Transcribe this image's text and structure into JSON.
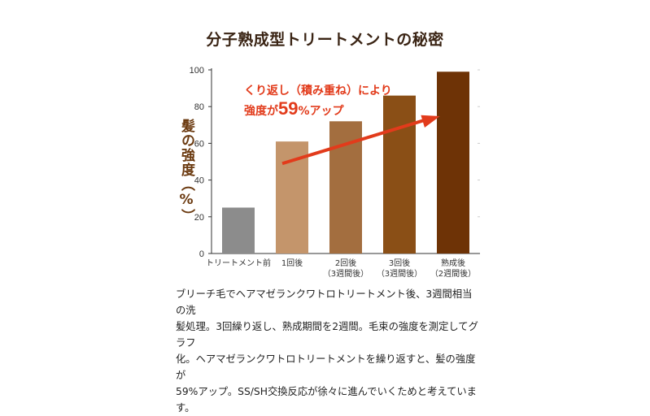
{
  "chart_data": {
    "type": "bar",
    "title": "分子熟成型トリートメントの秘密",
    "ylabel": "髪の強度（%）",
    "ylim": [
      0,
      100
    ],
    "yticks": [
      0,
      20,
      40,
      60,
      80,
      100
    ],
    "grid": false,
    "categories": [
      [
        "トリートメント前"
      ],
      [
        "1回後"
      ],
      [
        "2回後",
        "（3週間後）"
      ],
      [
        "3回後",
        "（3週間後）"
      ],
      [
        "熟成後",
        "（2週間後）"
      ]
    ],
    "values": [
      25,
      61,
      72,
      86,
      99
    ],
    "bar_colors": [
      "#8c8c8c",
      "#c4956b",
      "#a36e3f",
      "#8a4f16",
      "#6e3306"
    ],
    "annotation": {
      "line1": "くり返し（積み重ね）により",
      "line2_prefix": "強度が",
      "line2_value": "59",
      "line2_unit": "%",
      "line2_suffix": "アップ",
      "color": "#e23b1b"
    },
    "arrow_color": "#e23b1b"
  },
  "caption": [
    "ブリーチ毛でヘアマゼランクワトロトリートメント後、3週間相当の洗",
    "髪処理。3回繰り返し、熟成期間を2週間。毛束の強度を測定してグラフ",
    "化。ヘアマゼランクワトロトリートメントを繰り返すと、髪の強度が",
    "59%アップ。SS/SH交換反応が徐々に進んでいくためと考えています。"
  ]
}
